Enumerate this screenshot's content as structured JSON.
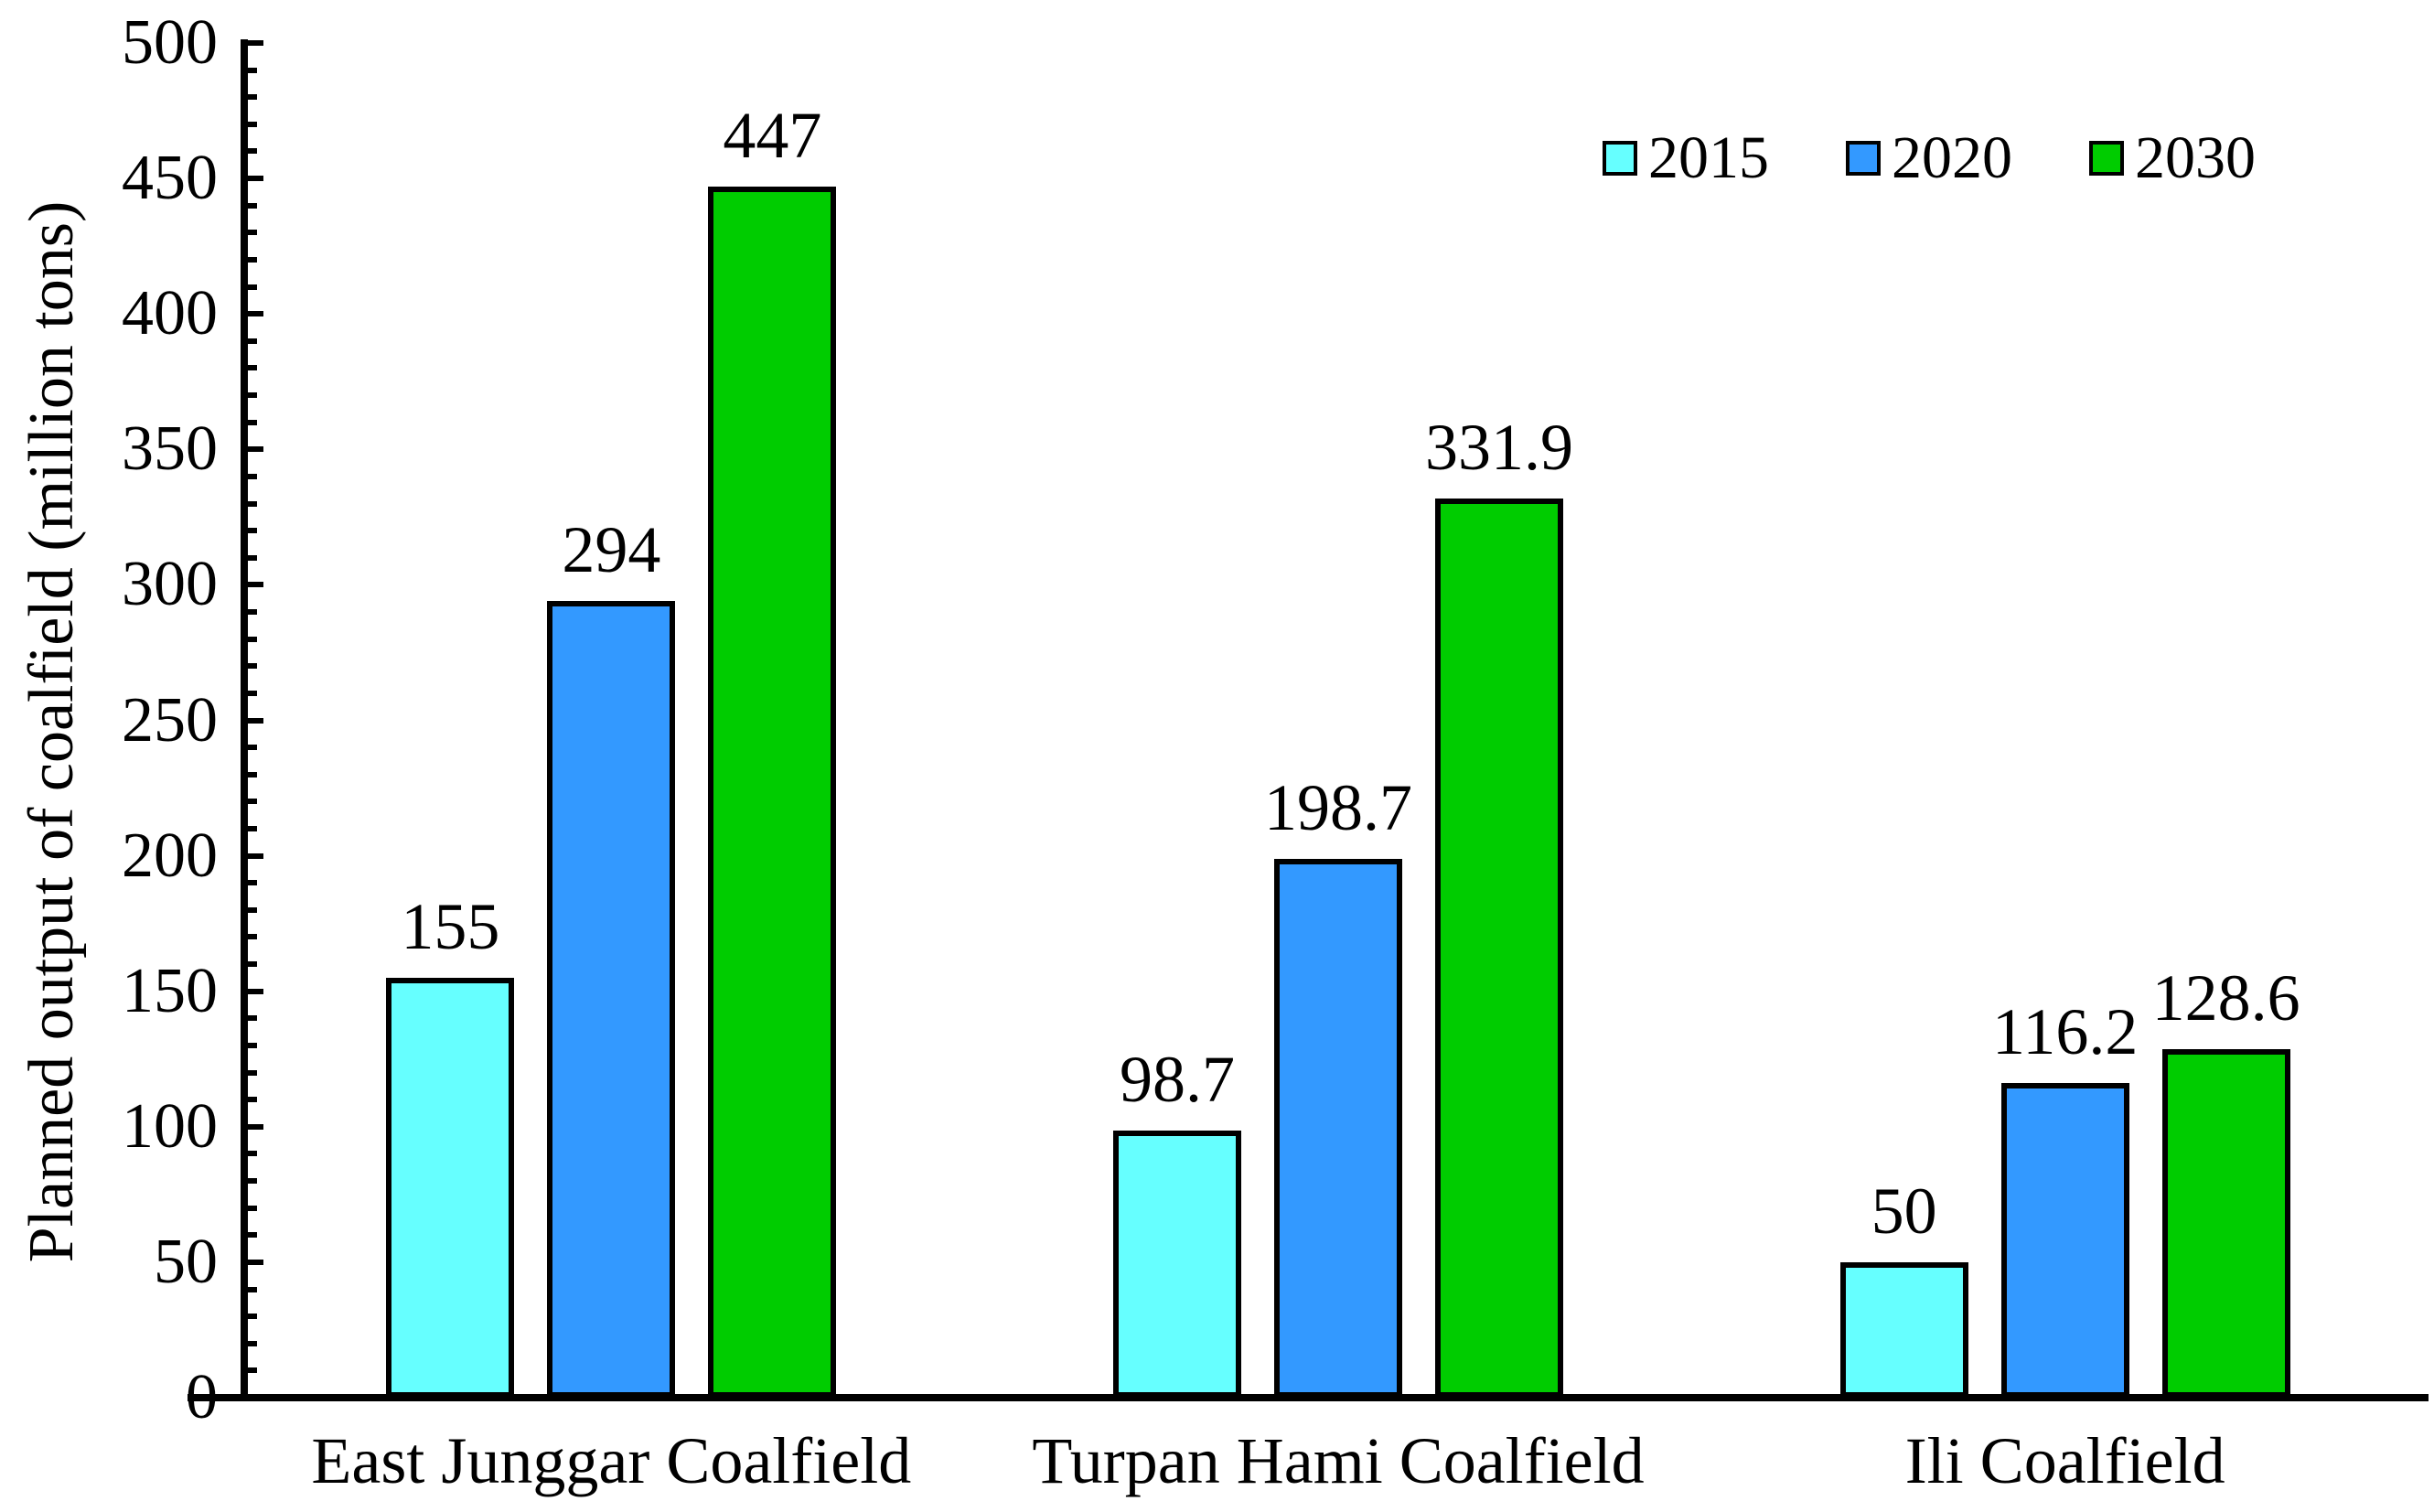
{
  "chart_data": {
    "type": "bar",
    "title": "",
    "xlabel": "",
    "ylabel": "Planned output of coalfield (million tons)",
    "ylim": [
      0,
      500
    ],
    "ytick_major_step": 50,
    "ytick_minor_step": 10,
    "ytick_labels": [
      "0",
      "50",
      "100",
      "150",
      "200",
      "250",
      "300",
      "350",
      "400",
      "450",
      "500"
    ],
    "grid": false,
    "legend_position": "top-right",
    "categories": [
      "East Junggar Coalfield",
      "Turpan Hami Coalfield",
      "Ili Coalfield"
    ],
    "series": [
      {
        "name": "2015",
        "color": "#66FFFF",
        "values": [
          155,
          98.7,
          50
        ]
      },
      {
        "name": "2020",
        "color": "#3399FF",
        "values": [
          294,
          198.7,
          116.2
        ]
      },
      {
        "name": "2030",
        "color": "#00CC00",
        "values": [
          447,
          331.9,
          128.6
        ]
      }
    ],
    "bar_value_labels": [
      [
        "155",
        "98.7",
        "50"
      ],
      [
        "294",
        "198.7",
        "116.2"
      ],
      [
        "447",
        "331.9",
        "128.6"
      ]
    ]
  }
}
